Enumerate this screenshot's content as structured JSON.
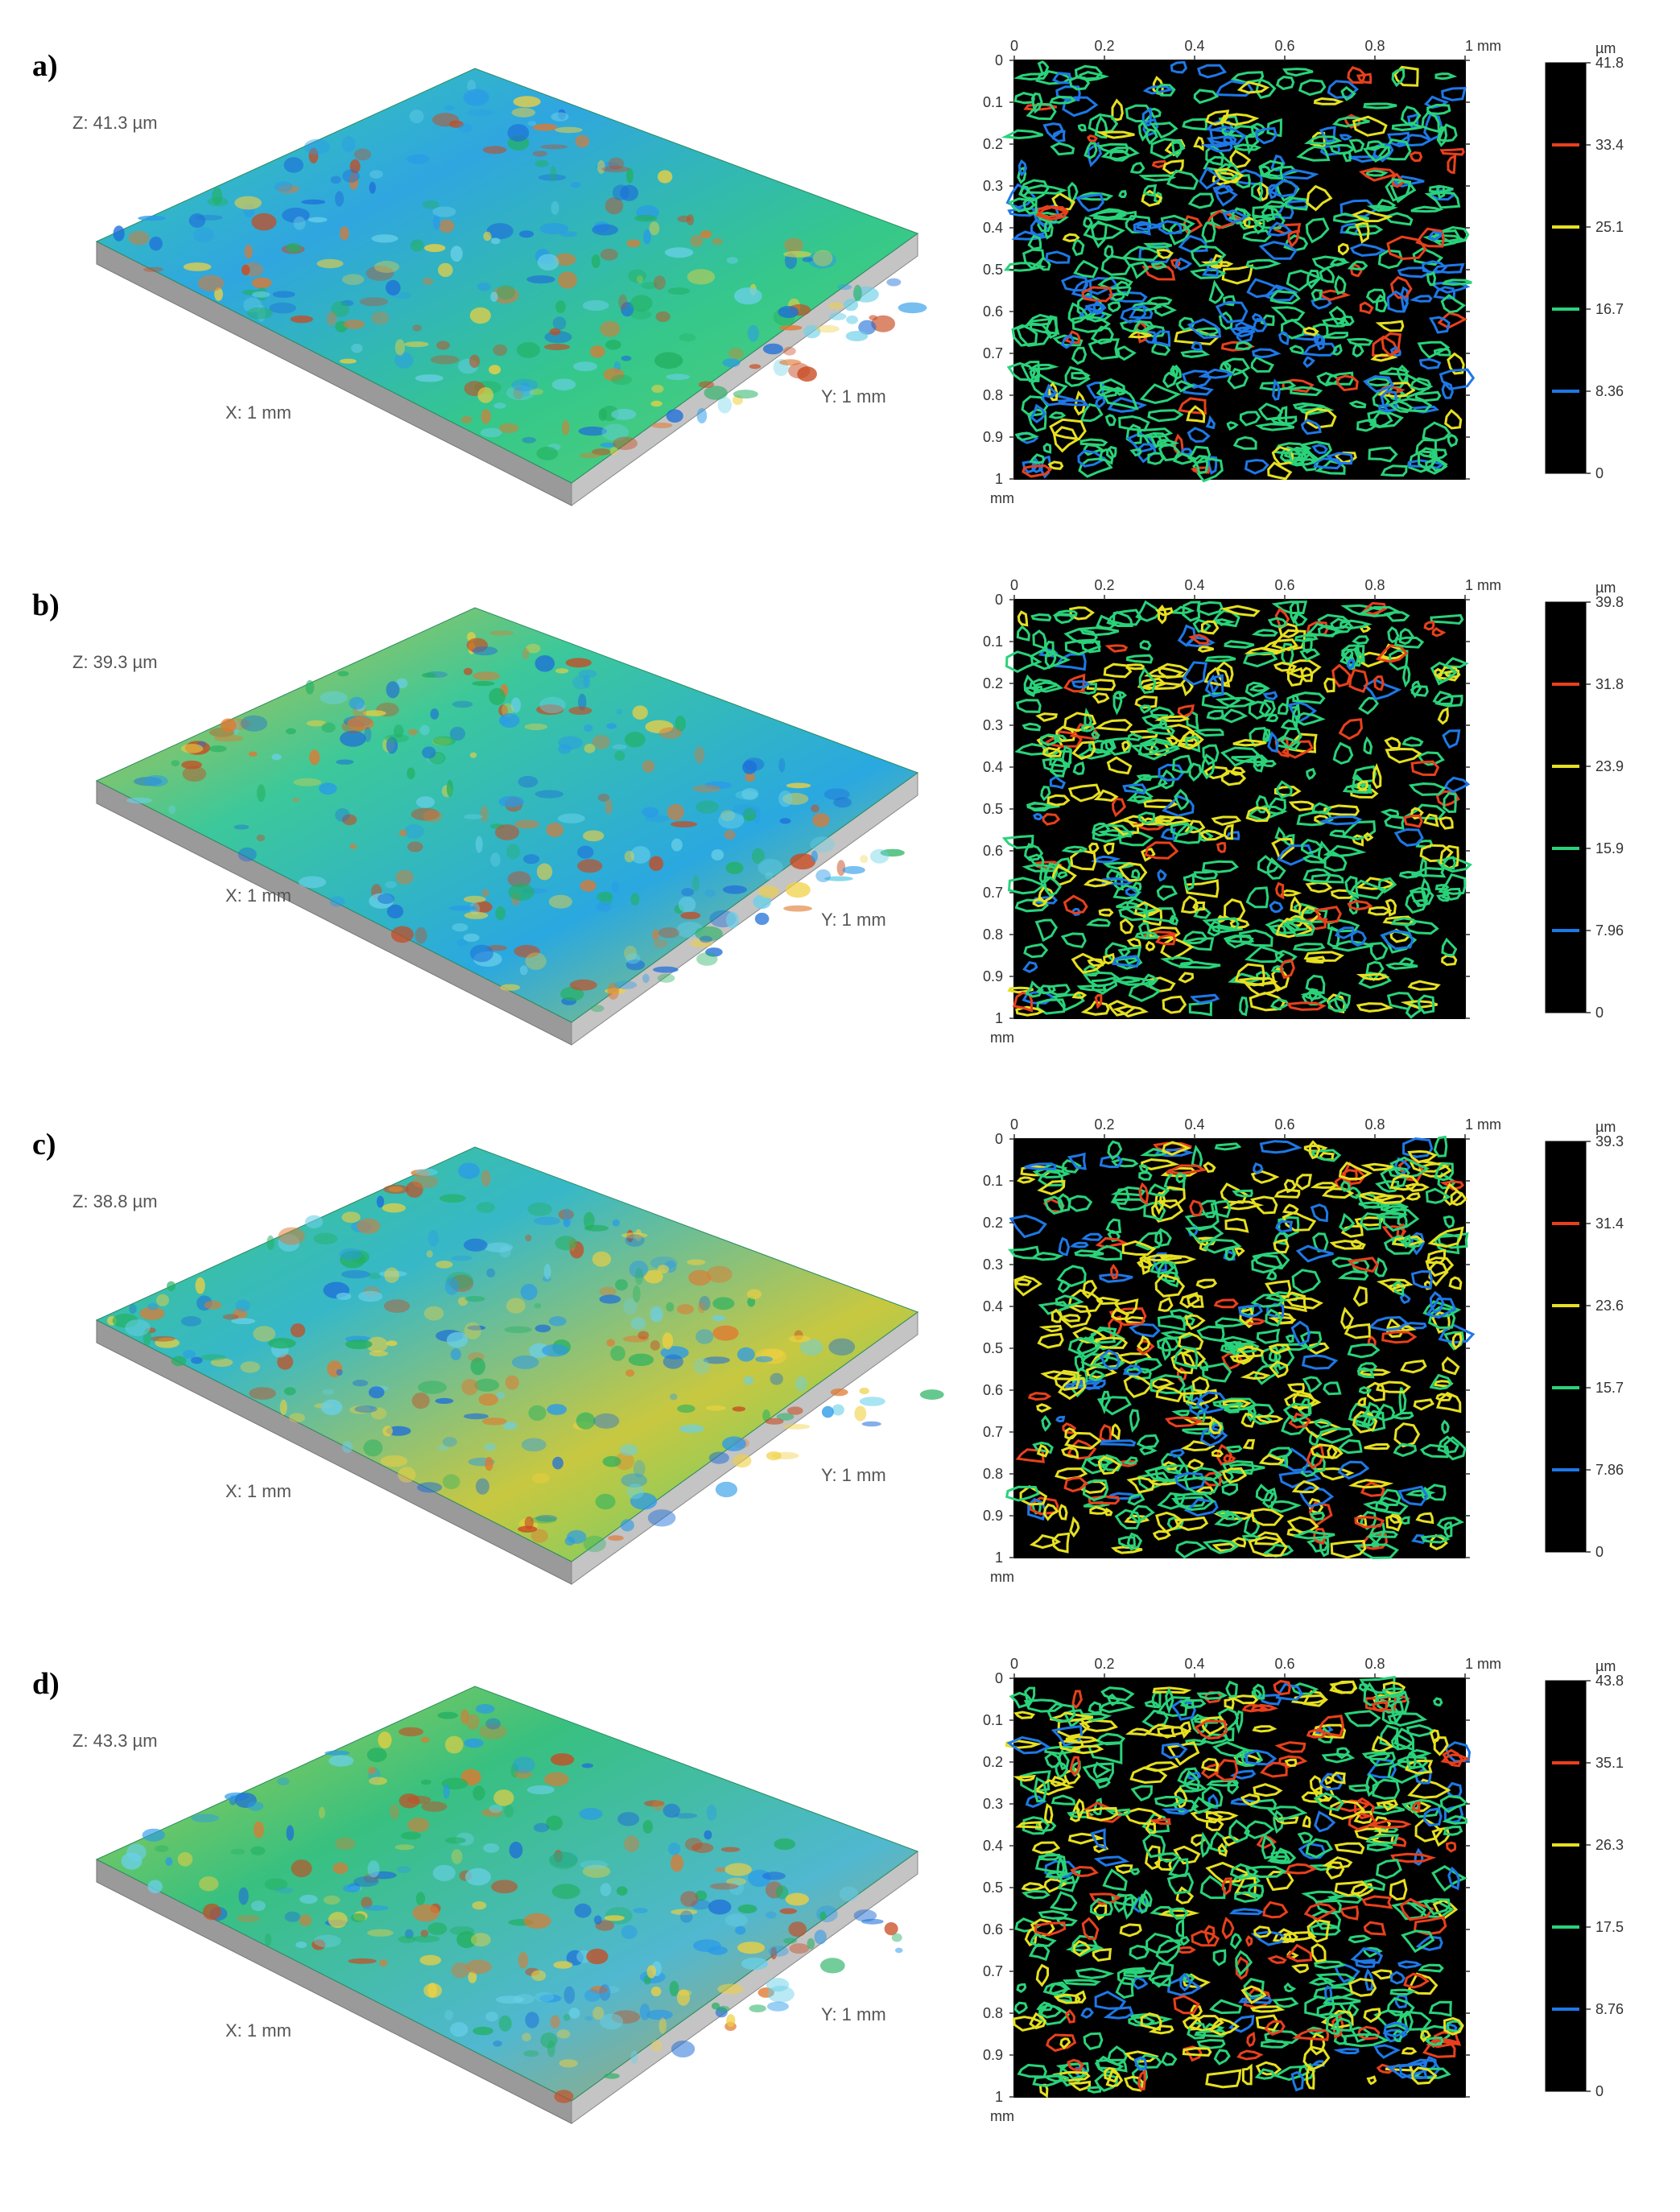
{
  "panels": [
    {
      "label": "a)",
      "z_label": "Z: 41.3 µm",
      "x_label": "X: 1 mm",
      "y_label": "Y: 1 mm",
      "x_ticks": [
        "0",
        "0.2",
        "0.4",
        "0.6",
        "0.8",
        "1 mm"
      ],
      "y_ticks": [
        "0",
        "0.1",
        "0.2",
        "0.3",
        "0.4",
        "0.5",
        "0.6",
        "0.7",
        "0.8",
        "0.9",
        "1"
      ],
      "corner_unit": "mm",
      "scale_unit": "µm",
      "scale_values": [
        "41.8",
        "33.4",
        "25.1",
        "16.7",
        "8.36",
        "0"
      ],
      "surface_palette": "blue-green",
      "contour_mix": {
        "green": 0.55,
        "yellow": 0.08,
        "red": 0.07,
        "blue": 0.3
      }
    },
    {
      "label": "b)",
      "z_label": "Z: 39.3 µm",
      "x_label": "X: 1 mm",
      "y_label": "Y: 1 mm",
      "x_ticks": [
        "0",
        "0.2",
        "0.4",
        "0.6",
        "0.8",
        "1 mm"
      ],
      "y_ticks": [
        "0",
        "0.1",
        "0.2",
        "0.3",
        "0.4",
        "0.5",
        "0.6",
        "0.7",
        "0.8",
        "0.9",
        "1"
      ],
      "corner_unit": "mm",
      "scale_unit": "µm",
      "scale_values": [
        "39.8",
        "31.8",
        "23.9",
        "15.9",
        "7.96",
        "0"
      ],
      "surface_palette": "striped",
      "contour_mix": {
        "green": 0.55,
        "yellow": 0.3,
        "red": 0.07,
        "blue": 0.08
      }
    },
    {
      "label": "c)",
      "z_label": "Z: 38.8 µm",
      "x_label": "X: 1 mm",
      "y_label": "Y: 1 mm",
      "x_ticks": [
        "0",
        "0.2",
        "0.4",
        "0.6",
        "0.8",
        "1 mm"
      ],
      "y_ticks": [
        "0",
        "0.1",
        "0.2",
        "0.3",
        "0.4",
        "0.5",
        "0.6",
        "0.7",
        "0.8",
        "0.9",
        "1"
      ],
      "corner_unit": "mm",
      "scale_unit": "µm",
      "scale_values": [
        "39.3",
        "31.4",
        "23.6",
        "15.7",
        "7.86",
        "0"
      ],
      "surface_palette": "mixed",
      "contour_mix": {
        "green": 0.45,
        "yellow": 0.35,
        "red": 0.1,
        "blue": 0.1
      }
    },
    {
      "label": "d)",
      "z_label": "Z: 43.3 µm",
      "x_label": "X: 1 mm",
      "y_label": "Y: 1 mm",
      "x_ticks": [
        "0",
        "0.2",
        "0.4",
        "0.6",
        "0.8",
        "1 mm"
      ],
      "y_ticks": [
        "0",
        "0.1",
        "0.2",
        "0.3",
        "0.4",
        "0.5",
        "0.6",
        "0.7",
        "0.8",
        "0.9",
        "1"
      ],
      "corner_unit": "mm",
      "scale_unit": "µm",
      "scale_values": [
        "43.8",
        "35.1",
        "26.3",
        "17.5",
        "8.76",
        "0"
      ],
      "surface_palette": "bumpy",
      "contour_mix": {
        "green": 0.45,
        "yellow": 0.3,
        "red": 0.15,
        "blue": 0.1
      }
    }
  ],
  "colors": {
    "level_red": "#e8401c",
    "level_yellow": "#e6e020",
    "level_green": "#2ad27a",
    "level_blue": "#1e78e6",
    "background": "#000000",
    "base": "#a9a9a9"
  }
}
